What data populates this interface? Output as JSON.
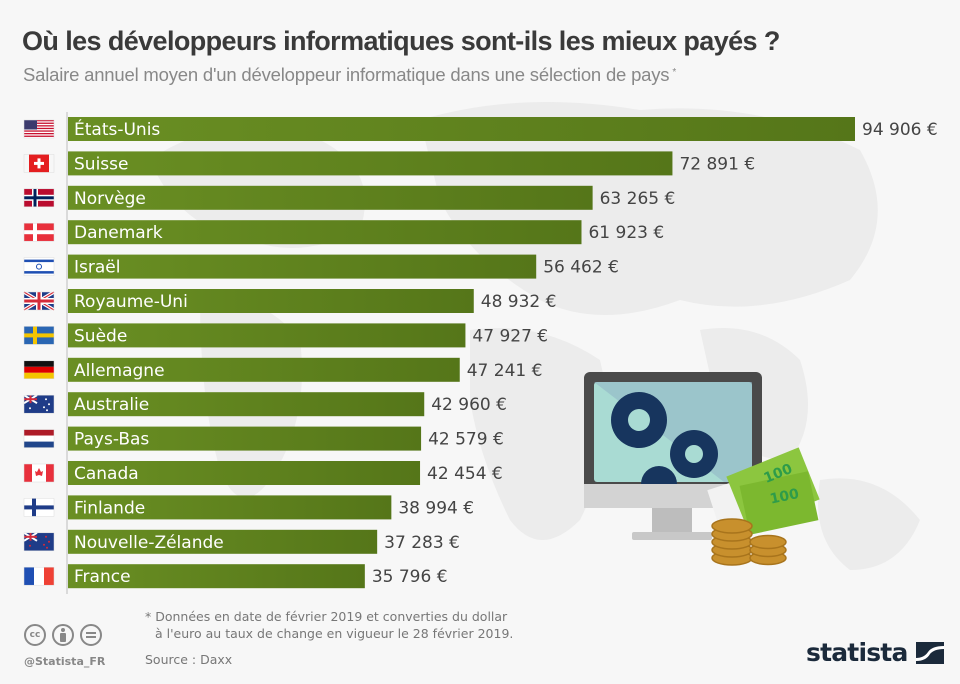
{
  "header": {
    "title": "Où les développeurs informatiques sont-ils les mieux payés ?",
    "subtitle": "Salaire annuel moyen d'un développeur informatique dans une sélection de pays",
    "subtitle_marker": "*"
  },
  "chart_data": {
    "type": "bar",
    "orientation": "horizontal",
    "title": "Où les développeurs informatiques sont-ils les mieux payés ?",
    "subtitle": "Salaire annuel moyen d'un développeur informatique dans une sélection de pays *",
    "xlabel": "",
    "ylabel": "",
    "unit": "€",
    "grid": false,
    "legend": "none",
    "categories": [
      "États-Unis",
      "Suisse",
      "Norvège",
      "Danemark",
      "Israël",
      "Royaume-Uni",
      "Suède",
      "Allemagne",
      "Australie",
      "Pays-Bas",
      "Canada",
      "Finlande",
      "Nouvelle-Zélande",
      "France"
    ],
    "values": [
      94906,
      72891,
      63265,
      61923,
      56462,
      48932,
      47927,
      47241,
      42960,
      42579,
      42454,
      38994,
      37283,
      35796
    ],
    "value_labels": [
      "94 906 €",
      "72 891 €",
      "63 265 €",
      "61 923 €",
      "56 462 €",
      "48 932 €",
      "47 927 €",
      "47 241 €",
      "42 960 €",
      "42 579 €",
      "42 454 €",
      "38 994 €",
      "37 283 €",
      "35 796 €"
    ],
    "flags": [
      "flag-us-icon",
      "flag-ch-icon",
      "flag-no-icon",
      "flag-dk-icon",
      "flag-il-icon",
      "flag-gb-icon",
      "flag-se-icon",
      "flag-de-icon",
      "flag-au-icon",
      "flag-nl-icon",
      "flag-ca-icon",
      "flag-fi-icon",
      "flag-nz-icon",
      "flag-fr-icon"
    ],
    "bar_color": "#5b7d1c",
    "xlim": [
      0,
      94906
    ]
  },
  "footer": {
    "note_line1": "* Données en date de février 2019 et converties du dollar",
    "note_line2": "à l'euro au taux de change en vigueur le 28 février 2019.",
    "source": "Source : Daxx",
    "handle": "@Statista_FR",
    "brand": "statista",
    "license_icons": [
      "cc-icon",
      "by-icon",
      "nd-icon"
    ]
  },
  "illustration": {
    "description": "computer-gears-money-icon",
    "banknote_text": "100"
  }
}
